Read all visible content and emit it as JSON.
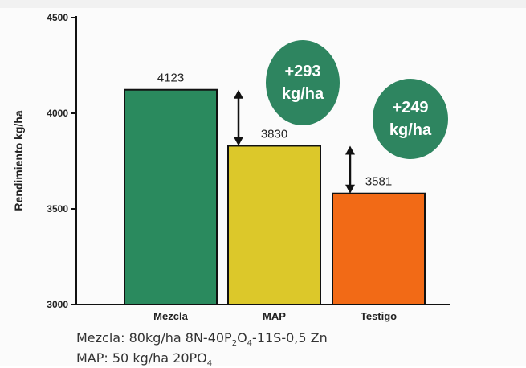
{
  "chart_data": {
    "type": "bar",
    "categories": [
      "Mezcla",
      "MAP",
      "Testigo"
    ],
    "values": [
      4123,
      3830,
      3581
    ],
    "data_labels": [
      "4123",
      "3830",
      "3581"
    ],
    "ylabel": "Rendimiento kg/ha",
    "xlabel": "",
    "ylim": [
      3000,
      4500
    ],
    "yticks": [
      "3000",
      "3500",
      "4000",
      "4500"
    ],
    "bar_colors": [
      "#2a8a5e",
      "#dcc82a",
      "#f26a16"
    ],
    "grid": false,
    "legend": "none",
    "annotations": [
      {
        "line1": "+293",
        "line2": "kg/ha",
        "from_value": 4123,
        "to_value": 3830,
        "color": "#2e8560"
      },
      {
        "line1": "+249",
        "line2": "kg/ha",
        "from_value": 3830,
        "to_value": 3581,
        "color": "#2e8560"
      }
    ]
  },
  "footnotes": {
    "mezcla": {
      "text": "Mezcla: 80kg/ha 8N-40P",
      "s1": "2",
      "t2": "O",
      "s2": "4",
      "tail": "-11S-0,5 Zn"
    },
    "map": {
      "text": "MAP: 50 kg/ha 20PO",
      "s1": "4"
    }
  }
}
